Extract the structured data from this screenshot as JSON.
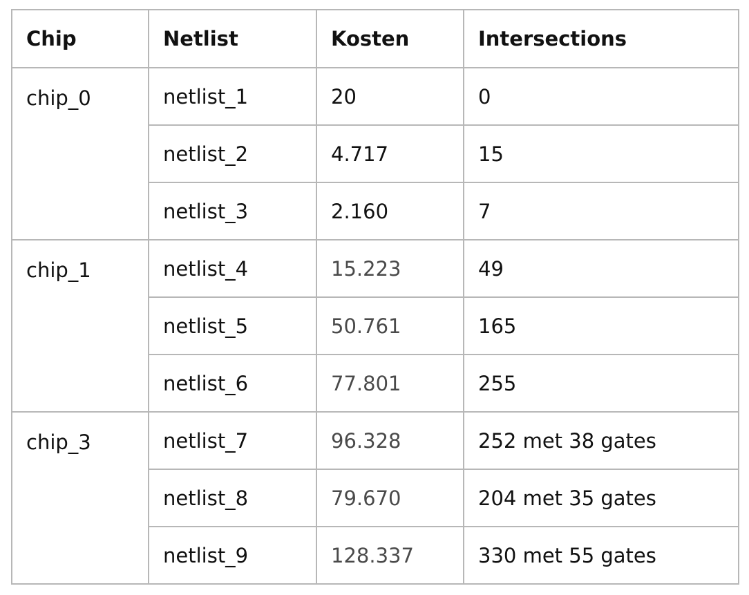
{
  "table": {
    "headers": [
      "Chip",
      "Netlist",
      "Kosten",
      "Intersections"
    ],
    "groups": [
      {
        "chip": "chip_0",
        "rows": [
          {
            "netlist": "netlist_1",
            "kosten": "20",
            "intersections": "0"
          },
          {
            "netlist": "netlist_2",
            "kosten": "4.717",
            "intersections": "15"
          },
          {
            "netlist": "netlist_3",
            "kosten": "2.160",
            "intersections": "7"
          }
        ]
      },
      {
        "chip": "chip_1",
        "rows": [
          {
            "netlist": "netlist_4",
            "kosten": "15.223",
            "intersections": "49"
          },
          {
            "netlist": "netlist_5",
            "kosten": "50.761",
            "intersections": "165"
          },
          {
            "netlist": "netlist_6",
            "kosten": "77.801",
            "intersections": "255"
          }
        ]
      },
      {
        "chip": "chip_3",
        "rows": [
          {
            "netlist": "netlist_7",
            "kosten": "96.328",
            "intersections": "252 met 38 gates"
          },
          {
            "netlist": "netlist_8",
            "kosten": "79.670",
            "intersections": "204 met 35 gates"
          },
          {
            "netlist": "netlist_9",
            "kosten": "128.337",
            "intersections": "330 met 55 gates"
          }
        ]
      }
    ],
    "colors": {
      "border": "#b7b7b7",
      "text": "#111111",
      "muted_text": "#4a4a4a"
    }
  }
}
